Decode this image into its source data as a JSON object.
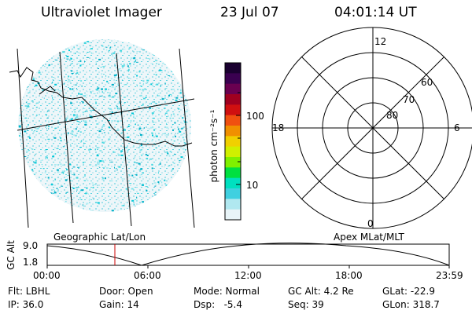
{
  "header": {
    "title": "Ultraviolet Imager",
    "date": "23 Jul 07",
    "time": "04:01:14 UT"
  },
  "colorbar": {
    "unit_label": "photon cm⁻²s⁻¹",
    "ticks": [
      "100",
      "10"
    ],
    "colors": [
      "#1a0030",
      "#3a0050",
      "#6a0050",
      "#a00020",
      "#d01010",
      "#f05010",
      "#f09000",
      "#f0d000",
      "#d0f000",
      "#80f000",
      "#00e040",
      "#00e0c0",
      "#40d0e0",
      "#b0e8f0",
      "#e8f4f8"
    ]
  },
  "polar": {
    "mlt_labels": {
      "top": "12",
      "bottom": "0",
      "left": "18",
      "right": "6"
    },
    "lat_labels": [
      "60",
      "70",
      "80"
    ]
  },
  "panels": {
    "left_label": "Geographic Lat/Lon",
    "right_label": "Apex MLat/MLT"
  },
  "orbit_plot": {
    "ylabel": "GC Alt",
    "ytick_top": "9.0",
    "ytick_bottom": "1.8",
    "xticks": [
      "00:00",
      "06:00",
      "12:00",
      "18:00",
      "23:59"
    ],
    "marker_color": "#cc0000"
  },
  "info": {
    "filter": "Flt: LBHL",
    "ip": "IP: 36.0",
    "door": "Door: Open",
    "gain": "Gain: 14",
    "mode": "Mode: Normal",
    "dsp": "Dsp:   -5.4",
    "gc_alt": "GC Alt: 4.2 Re",
    "seq": "Seq: 39",
    "glat": "GLat: -22.9",
    "glon": "GLon: 318.7"
  }
}
